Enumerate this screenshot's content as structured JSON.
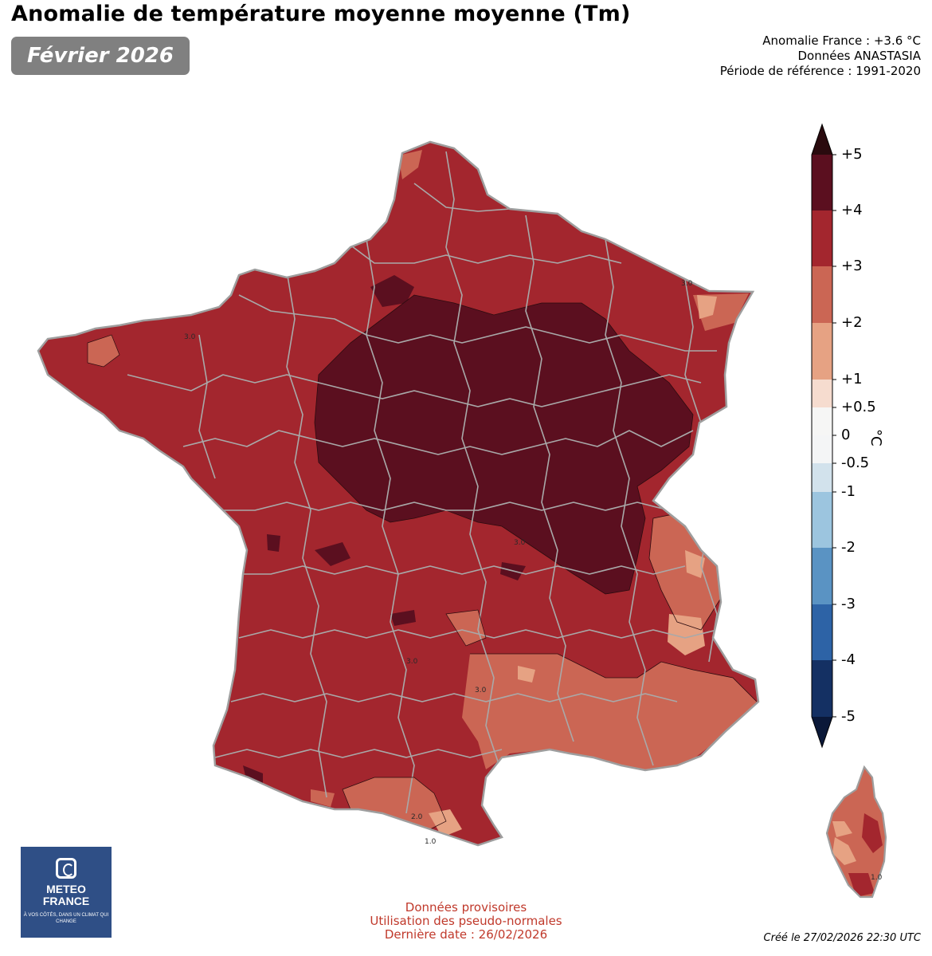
{
  "header": {
    "title": "Anomalie de température moyenne moyenne (Tm)",
    "month": "Février 2026",
    "anomaly_france": "Anomalie France : +3.6 °C",
    "data_source": "Données ANASTASIA",
    "reference_period": "Période de référence : 1991-2020"
  },
  "legend": {
    "unit": "°C",
    "ticks": [
      "+5",
      "+4",
      "+3",
      "+2",
      "+1",
      "+0.5",
      "0",
      "-0.5",
      "-1",
      "-2",
      "-3",
      "-4",
      "-5"
    ],
    "colors": {
      "above_5": "#2a0a0e",
      "4_to_5": "#5b0f1f",
      "3_to_4": "#a3262e",
      "2_to_3": "#cb6654",
      "1_to_2": "#e6a283",
      "0.5_to_1": "#f6dccf",
      "0_to_0.5": "#f6f6f5",
      "-0.5_to_0": "#f4f5f6",
      "-1_to_-0.5": "#d2e2ec",
      "-2_to_-1": "#9cc5df",
      "-3_to_-2": "#5a93c3",
      "-4_to_-3": "#2d63a6",
      "-5_to_-4": "#143063",
      "below_-5": "#0a1838"
    }
  },
  "map": {
    "contour_labels": [
      "3.0",
      "3.0",
      "3.0",
      "3.0",
      "3.0",
      "2.0",
      "1.0",
      "1.0"
    ]
  },
  "logo": {
    "name_line1": "METEO",
    "name_line2": "FRANCE",
    "tagline": "À VOS CÔTÉS, DANS UN CLIMAT QUI CHANGE"
  },
  "footer": {
    "note1": "Données provisoires",
    "note2": "Utilisation des pseudo-normales",
    "note3": "Dernière date : 26/02/2026",
    "created": "Créé le 27/02/2026 22:30 UTC"
  }
}
